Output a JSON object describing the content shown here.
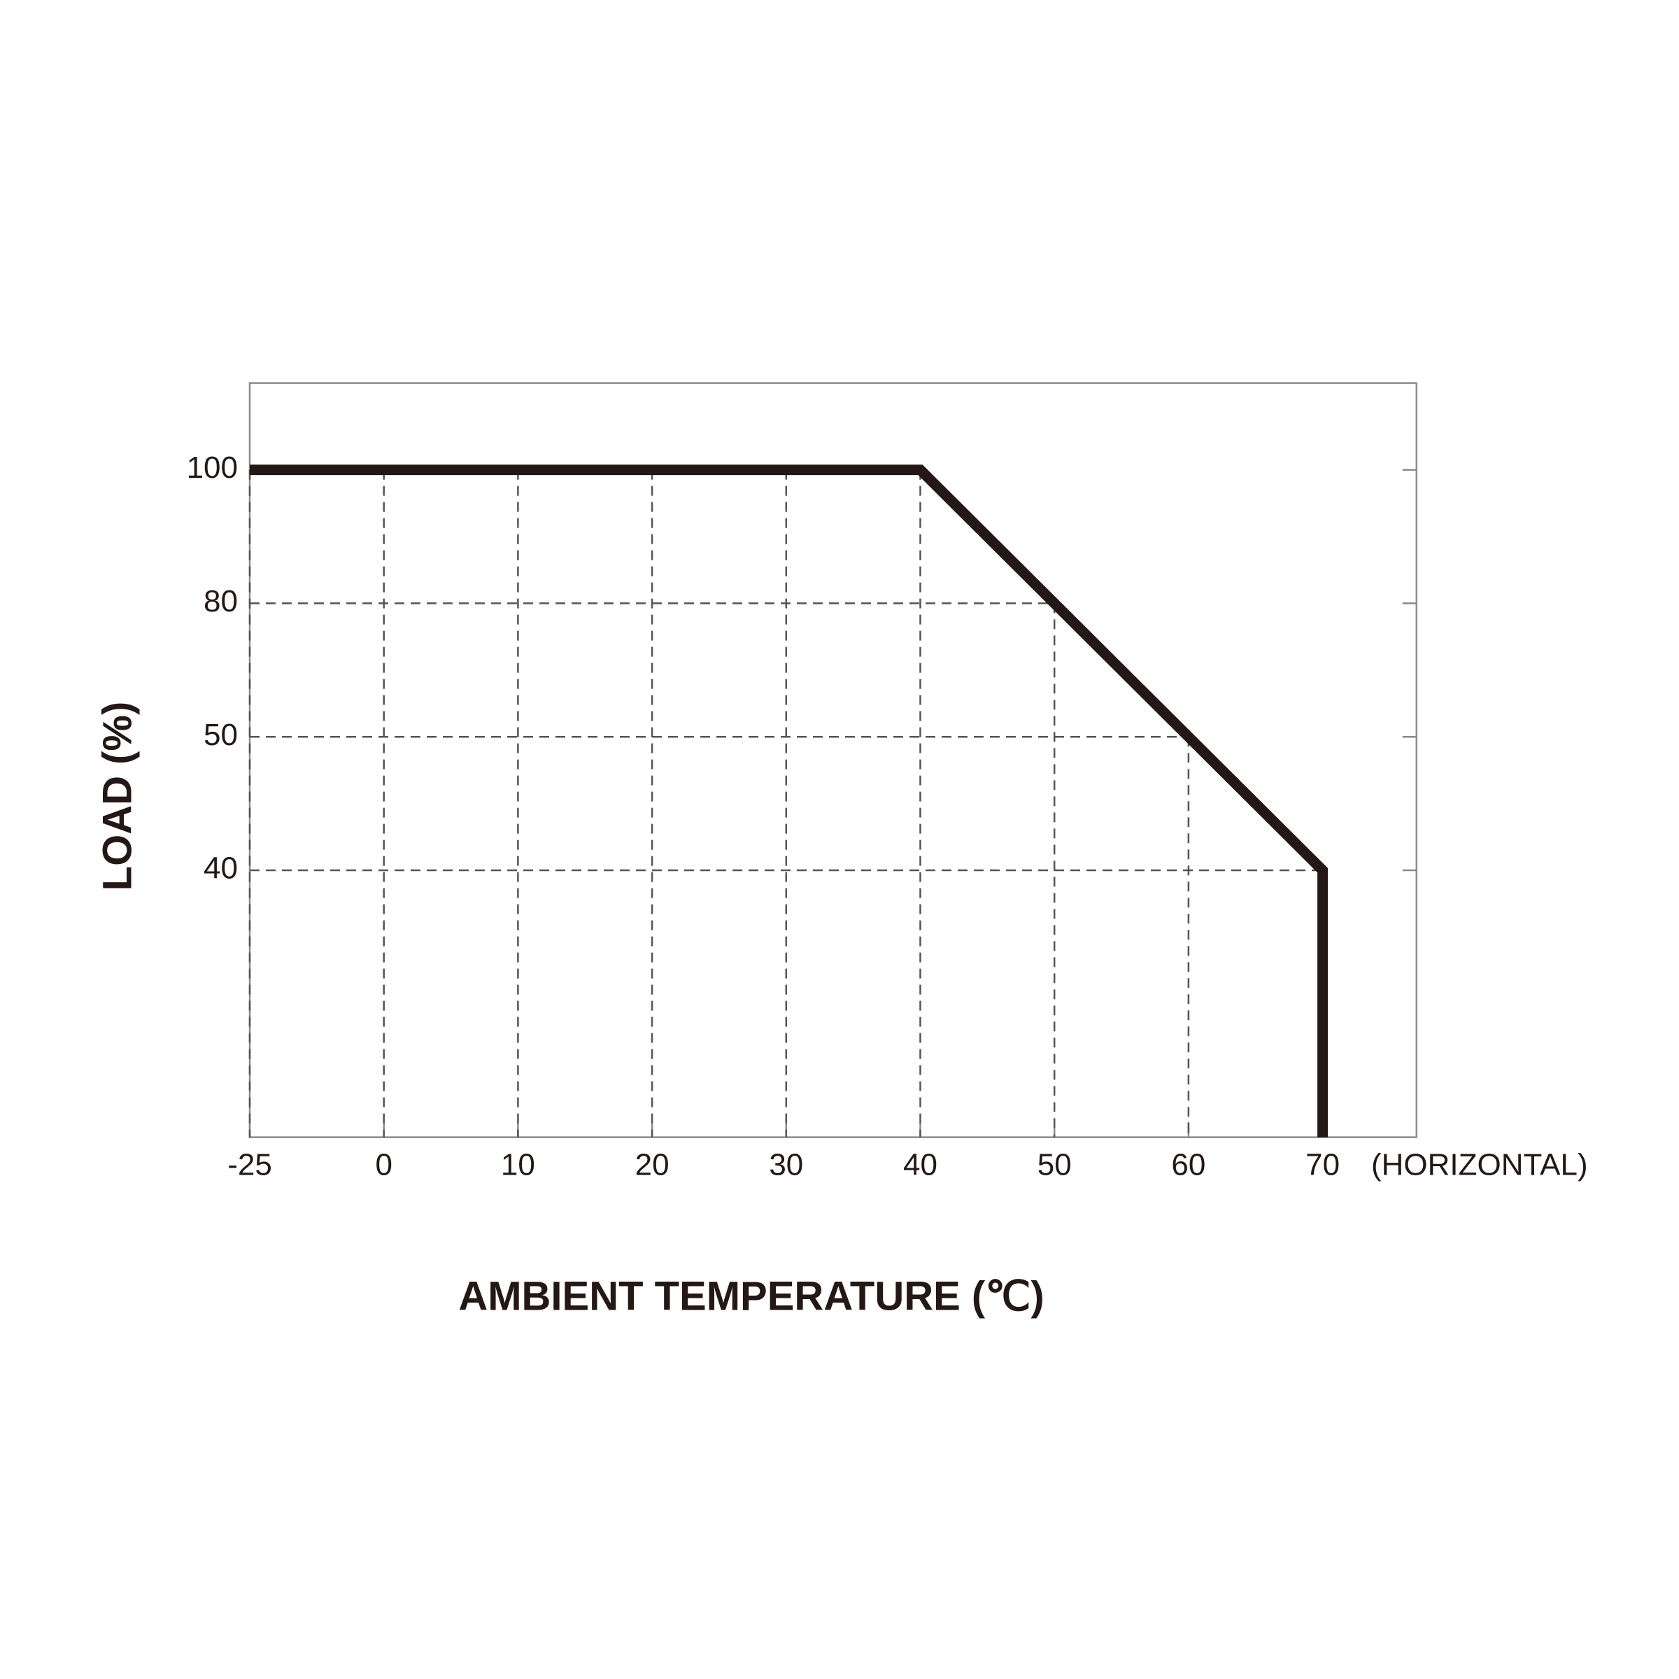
{
  "chart_data": {
    "type": "line",
    "x_label": "AMBIENT TEMPERATURE (℃)",
    "y_label": "LOAD (%)",
    "annotation": "(HORIZONTAL)",
    "x": [
      -25,
      40,
      70,
      70
    ],
    "series": [
      {
        "color": "#231815",
        "values": [
          100,
          100,
          40,
          20
        ]
      }
    ],
    "xlim": [
      -25,
      77
    ],
    "xticks": [
      -25,
      0,
      10,
      20,
      30,
      40,
      50,
      60,
      70
    ],
    "ylim": [
      20,
      113
    ],
    "yticks": [
      40,
      50,
      80,
      100
    ],
    "scale": "evenly spaced ticks",
    "grid": "dashed guides"
  }
}
